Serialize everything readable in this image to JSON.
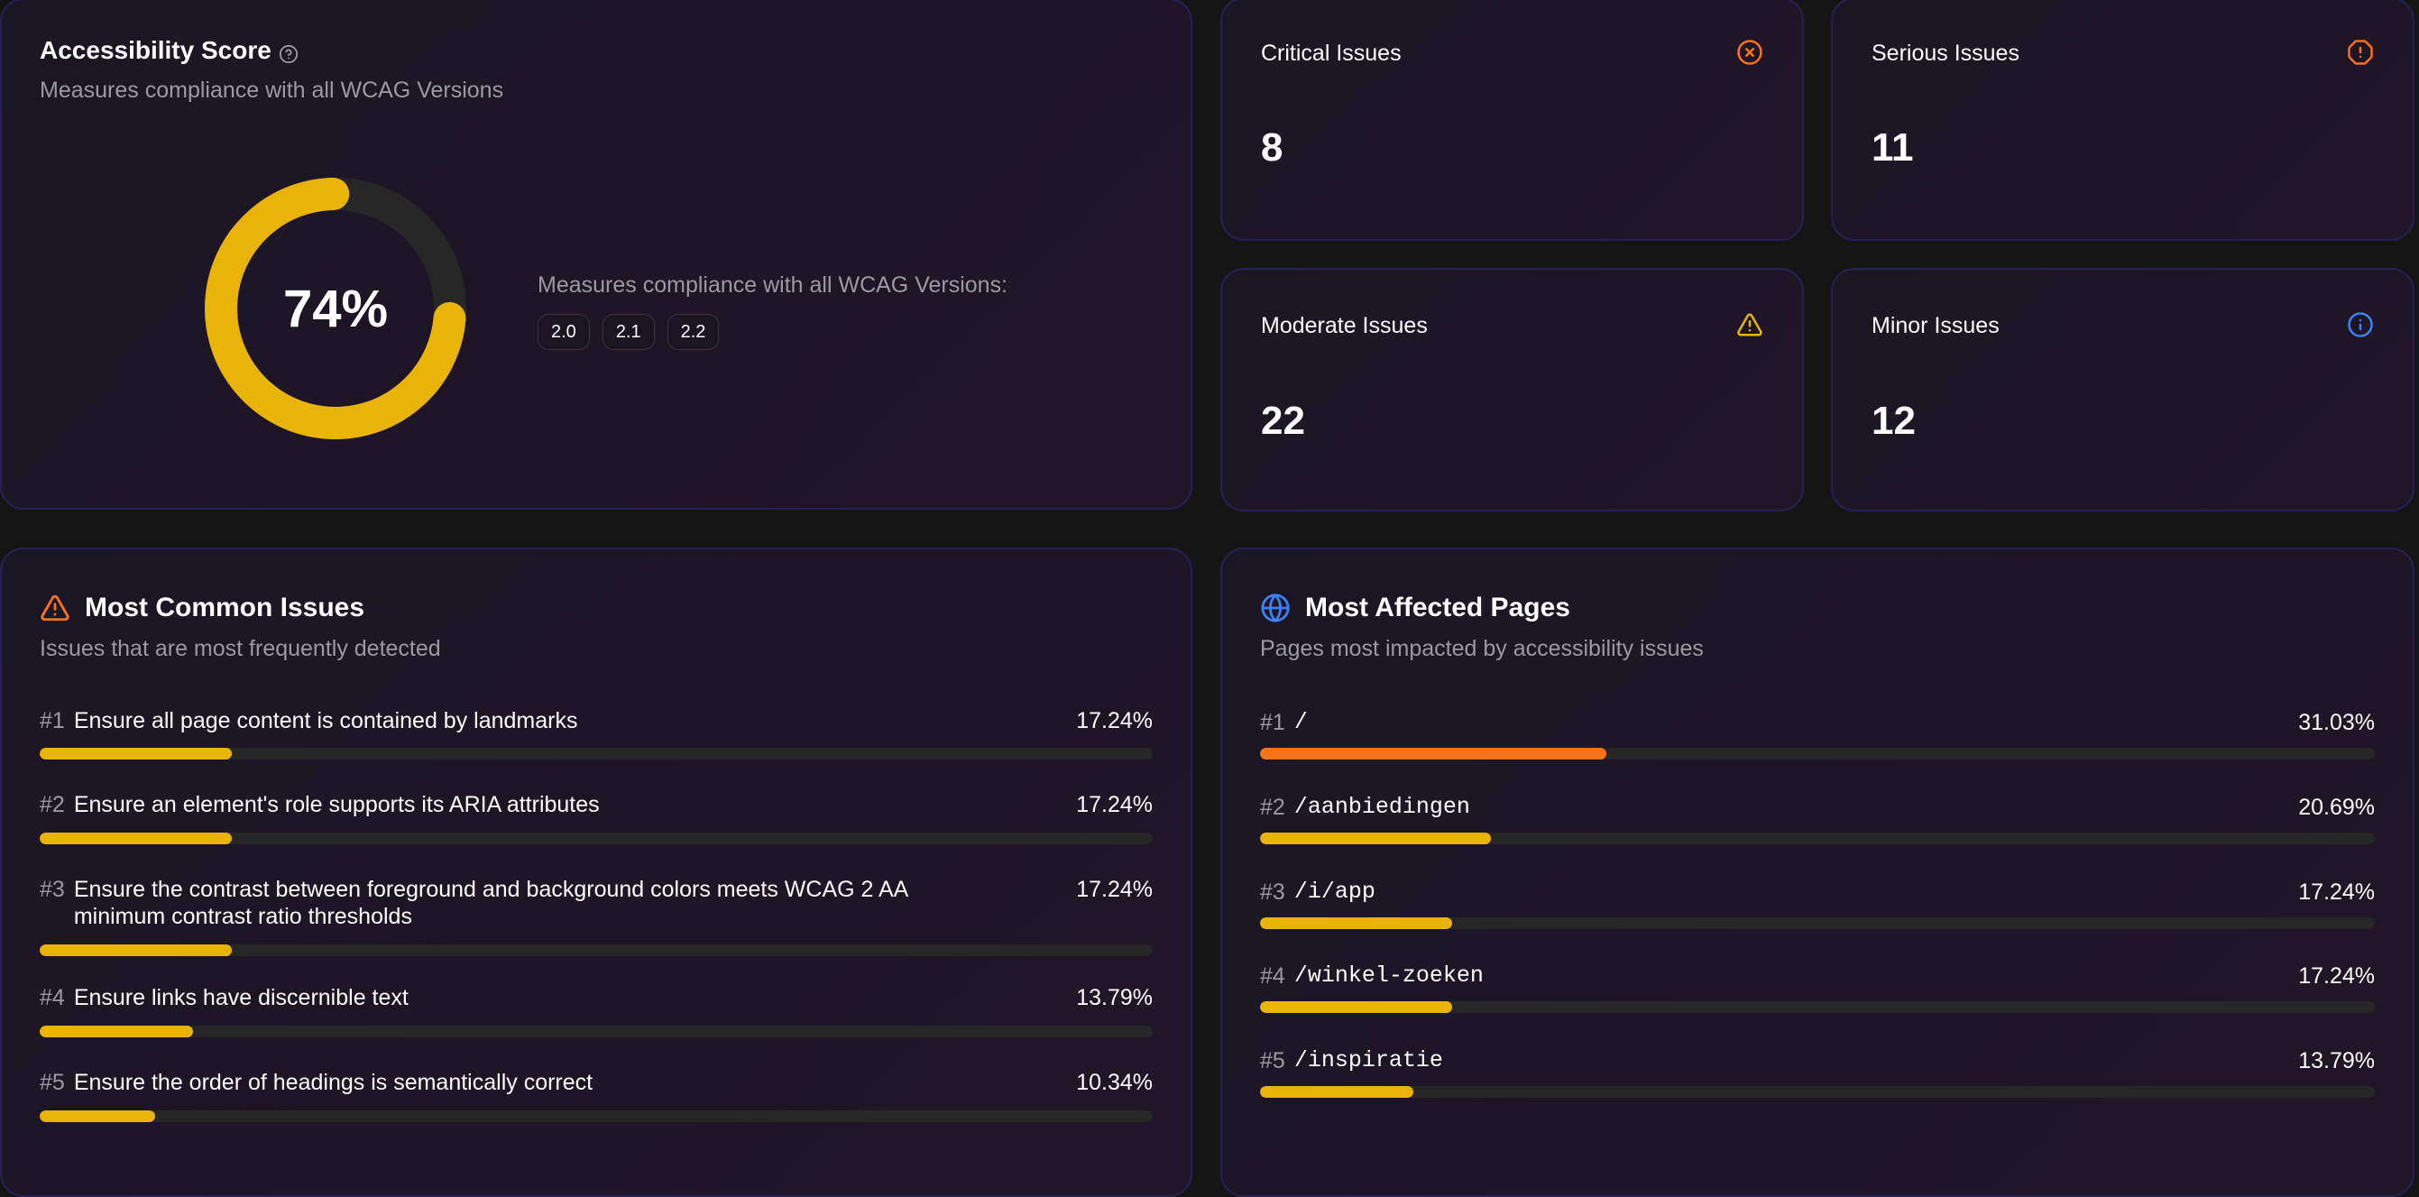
{
  "score_card": {
    "title": "Accessibility Score",
    "help_icon": "help-circle-icon",
    "subtitle": "Measures compliance with all WCAG Versions",
    "score_value": "74%",
    "score_percent": 74,
    "score_color": "#eab308",
    "track_color": "#262626",
    "wcag_label": "Measures compliance with all WCAG Versions:",
    "wcag_versions": [
      "2.0",
      "2.1",
      "2.2"
    ]
  },
  "stats": {
    "critical": {
      "label": "Critical Issues",
      "value": "8",
      "icon": "circle-x-icon",
      "color": "#f97316"
    },
    "serious": {
      "label": "Serious Issues",
      "value": "11",
      "icon": "octagon-alert-icon",
      "color": "#f97316"
    },
    "moderate": {
      "label": "Moderate Issues",
      "value": "22",
      "icon": "triangle-alert-icon",
      "color": "#eab308"
    },
    "minor": {
      "label": "Minor Issues",
      "value": "12",
      "icon": "info-icon",
      "color": "#3b82f6"
    }
  },
  "common_issues": {
    "title": "Most Common Issues",
    "icon": "triangle-alert-icon",
    "icon_color": "#f97316",
    "subtitle": "Issues that are most frequently detected",
    "items": [
      {
        "rank": "#1",
        "label": "Ensure all page content is contained by landmarks",
        "percent_label": "17.24%",
        "percent": 17.24,
        "color": "#eab308"
      },
      {
        "rank": "#2",
        "label": "Ensure an element's role supports its ARIA attributes",
        "percent_label": "17.24%",
        "percent": 17.24,
        "color": "#eab308"
      },
      {
        "rank": "#3",
        "label": "Ensure the contrast between foreground and background colors meets WCAG 2 AA minimum contrast ratio thresholds",
        "percent_label": "17.24%",
        "percent": 17.24,
        "color": "#eab308"
      },
      {
        "rank": "#4",
        "label": "Ensure links have discernible text",
        "percent_label": "13.79%",
        "percent": 13.79,
        "color": "#eab308"
      },
      {
        "rank": "#5",
        "label": "Ensure the order of headings is semantically correct",
        "percent_label": "10.34%",
        "percent": 10.34,
        "color": "#eab308"
      }
    ]
  },
  "affected_pages": {
    "title": "Most Affected Pages",
    "icon": "globe-icon",
    "icon_color": "#3b82f6",
    "subtitle": "Pages most impacted by accessibility issues",
    "items": [
      {
        "rank": "#1",
        "path": "/",
        "percent_label": "31.03%",
        "percent": 31.03,
        "color": "#f97316"
      },
      {
        "rank": "#2",
        "path": "/aanbiedingen",
        "percent_label": "20.69%",
        "percent": 20.69,
        "color": "#eab308"
      },
      {
        "rank": "#3",
        "path": "/i/app",
        "percent_label": "17.24%",
        "percent": 17.24,
        "color": "#eab308"
      },
      {
        "rank": "#4",
        "path": "/winkel-zoeken",
        "percent_label": "17.24%",
        "percent": 17.24,
        "color": "#eab308"
      },
      {
        "rank": "#5",
        "path": "/inspiratie",
        "percent_label": "13.79%",
        "percent": 13.79,
        "color": "#eab308"
      }
    ]
  }
}
